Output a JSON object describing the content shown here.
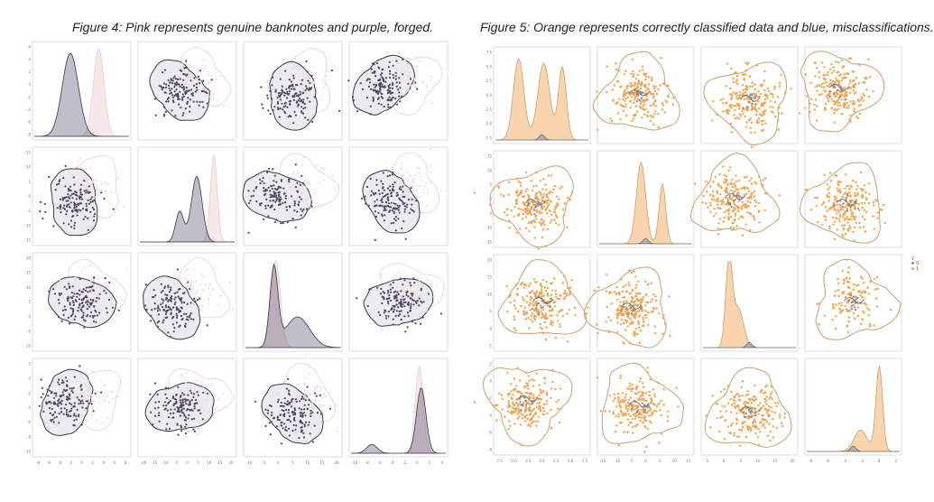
{
  "figures": [
    {
      "title": "Figure 4: Pink represents genuine banknotes and purple, forged.",
      "colors": {
        "a": "#f0d8d8",
        "b": "#4a4560",
        "a_line": "#e8cfcf",
        "b_line": "#3a3650"
      }
    },
    {
      "title": "Figure 5: Orange represents correctly classified data and blue, misclassifications.",
      "colors": {
        "a": "#f5a04a",
        "b": "#7a8aa0",
        "a_line": "#c9a070",
        "b_line": "#4a5a70"
      }
    }
  ],
  "legend": {
    "hue_label": "y",
    "entries": [
      "0",
      "1"
    ]
  },
  "chart_data": [
    {
      "type": "scatter",
      "title": "Figure 4: Pink represents genuine banknotes and purple, forged.",
      "grid_layout": "4x4 pair plot (diagonal = KDE density, off-diagonal = scatter with KDE contours)",
      "series": [
        {
          "name": "genuine (pink)"
        },
        {
          "name": "forged (purple)"
        }
      ],
      "x_tick_labels_bottom_row": [
        [
          "-8",
          "-6",
          "-4",
          "-2",
          "0",
          "2",
          "4",
          "6",
          "8"
        ],
        [
          "-20",
          "-15",
          "-10",
          "-5",
          "0",
          "5",
          "10",
          "15",
          "20"
        ],
        [
          "-10",
          "-5",
          "0",
          "5",
          "10",
          "15",
          "20"
        ],
        [
          "-10",
          "-8",
          "-6",
          "-4",
          "-2",
          "0",
          "2",
          "4"
        ]
      ],
      "y_tick_labels_left_col": [
        [
          "6",
          "4",
          "2",
          "0",
          "-2",
          "-4",
          "-6",
          "-8"
        ],
        [
          "15",
          "10",
          "5",
          "0",
          "-5",
          "-10",
          "-15"
        ],
        [
          "20",
          "15",
          "10",
          "5",
          "0",
          "-5",
          "-10"
        ],
        [
          "2",
          "0",
          "-2",
          "-4",
          "-6",
          "-8",
          "-10"
        ]
      ],
      "grid": false
    },
    {
      "type": "scatter",
      "title": "Figure 5: Orange represents correctly classified data and blue, misclassifications.",
      "grid_layout": "4x4 pair plot (diagonal = KDE density, off-diagonal = scatter with KDE contours)",
      "series": [
        {
          "name": "0"
        },
        {
          "name": "1"
        }
      ],
      "x_tick_labels_bottom_row": [
        [
          "-7.5",
          "-5.0",
          "-2.5",
          "0.0",
          "2.5",
          "5.0",
          "7.5"
        ],
        [
          "-15",
          "-10",
          "-5",
          "0",
          "5",
          "10",
          "15"
        ],
        [
          "-5",
          "0",
          "5",
          "10",
          "15",
          "20"
        ],
        [
          "-8",
          "-6",
          "-4",
          "-2",
          "0",
          "2"
        ]
      ],
      "y_tick_labels_left_col": [
        [
          "7.5",
          "5.0",
          "2.5",
          "0.0",
          "-2.5",
          "-5.0",
          "-7.5"
        ],
        [
          "15",
          "10",
          "5",
          "0",
          "-5",
          "-10",
          "-15"
        ],
        [
          "20",
          "15",
          "10",
          "5",
          "0",
          "-5"
        ],
        [
          "2",
          "0",
          "-2",
          "-4",
          "-6",
          "-8"
        ]
      ],
      "legend_placement": "right",
      "grid": false
    }
  ]
}
